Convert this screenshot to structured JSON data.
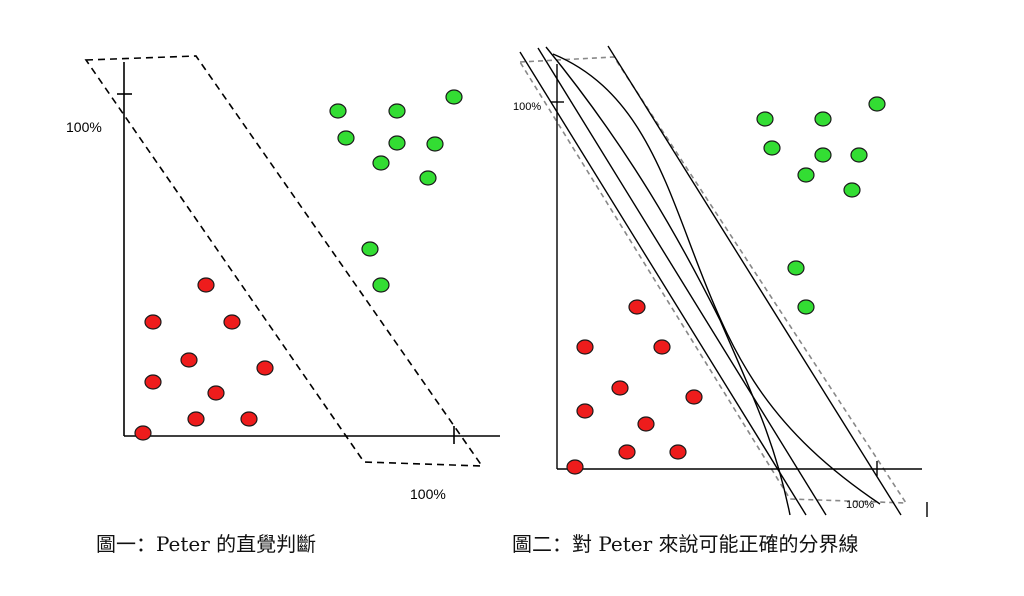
{
  "figure1": {
    "caption": "圖一：Peter 的直覺判斷",
    "y_axis_label": "100%",
    "x_axis_label": "100%",
    "colors": {
      "red": "#ee1c1c",
      "green": "#33dd33"
    }
  },
  "figure2": {
    "caption": "圖二：對 Peter 來說可能正確的分界線",
    "y_axis_label": "100%",
    "x_axis_label": "100%",
    "colors": {
      "red": "#ee1c1c",
      "green": "#33dd33"
    }
  }
}
